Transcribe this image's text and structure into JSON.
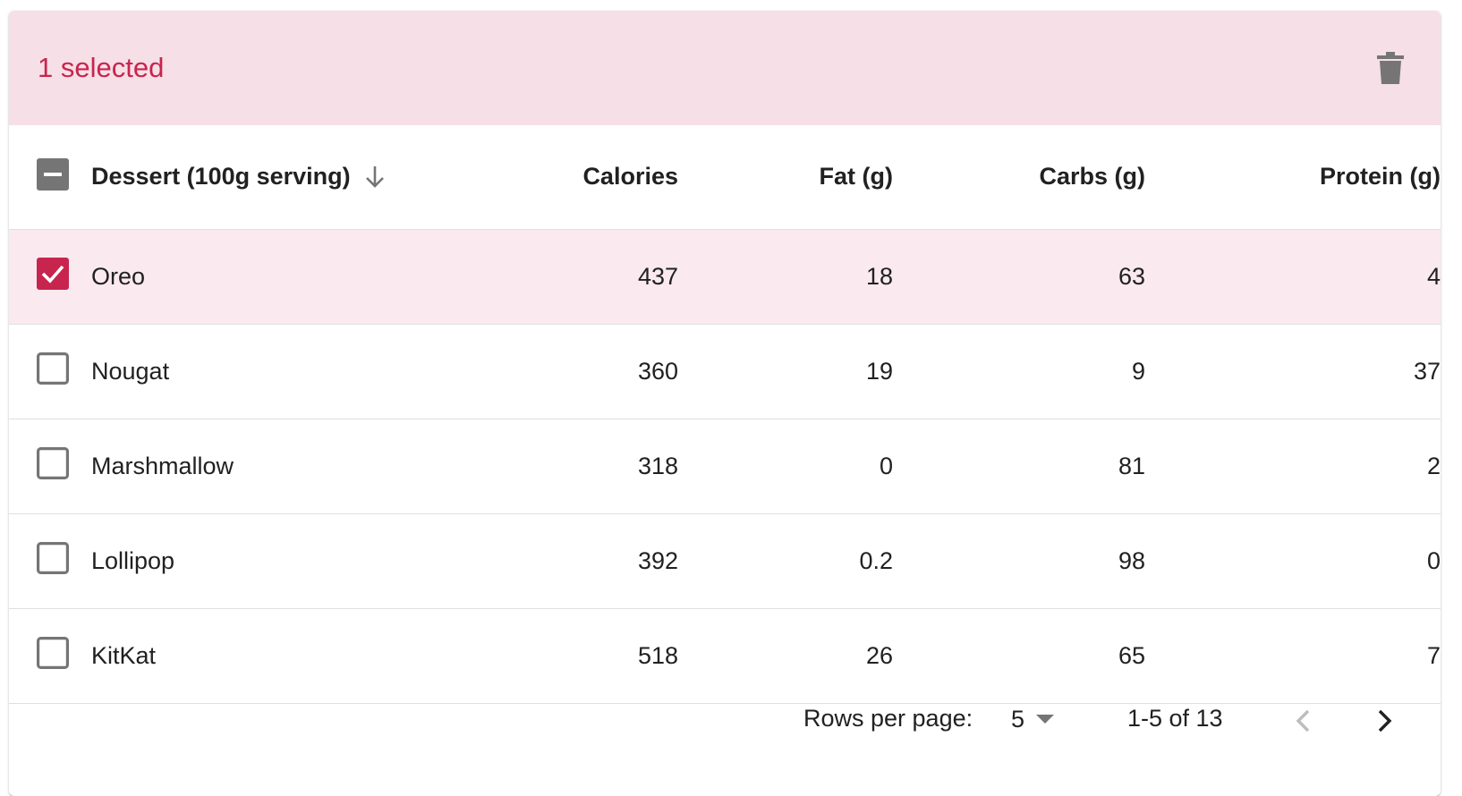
{
  "toolbar": {
    "selected_text": "1 selected",
    "delete_icon": "trash-icon"
  },
  "columns": {
    "dessert": "Dessert (100g serving)",
    "calories": "Calories",
    "fat": "Fat (g)",
    "carbs": "Carbs (g)",
    "protein": "Protein (g)",
    "sort_icon": "arrow-down-icon"
  },
  "rows": [
    {
      "name": "Oreo",
      "calories": "437",
      "fat": "18",
      "carbs": "63",
      "protein": "4",
      "selected": true
    },
    {
      "name": "Nougat",
      "calories": "360",
      "fat": "19",
      "carbs": "9",
      "protein": "37",
      "selected": false
    },
    {
      "name": "Marshmallow",
      "calories": "318",
      "fat": "0",
      "carbs": "81",
      "protein": "2",
      "selected": false
    },
    {
      "name": "Lollipop",
      "calories": "392",
      "fat": "0.2",
      "carbs": "98",
      "protein": "0",
      "selected": false
    },
    {
      "name": "KitKat",
      "calories": "518",
      "fat": "26",
      "carbs": "65",
      "protein": "7",
      "selected": false
    }
  ],
  "pagination": {
    "rows_per_page_label": "Rows per page:",
    "rows_per_page_value": "5",
    "range_text": "1-5 of 13"
  },
  "colors": {
    "accent": "#c7254e",
    "toolbar_bg": "#f6dfe6",
    "selected_row_bg": "#faeaf0",
    "checkbox_unchecked": "#757575"
  }
}
